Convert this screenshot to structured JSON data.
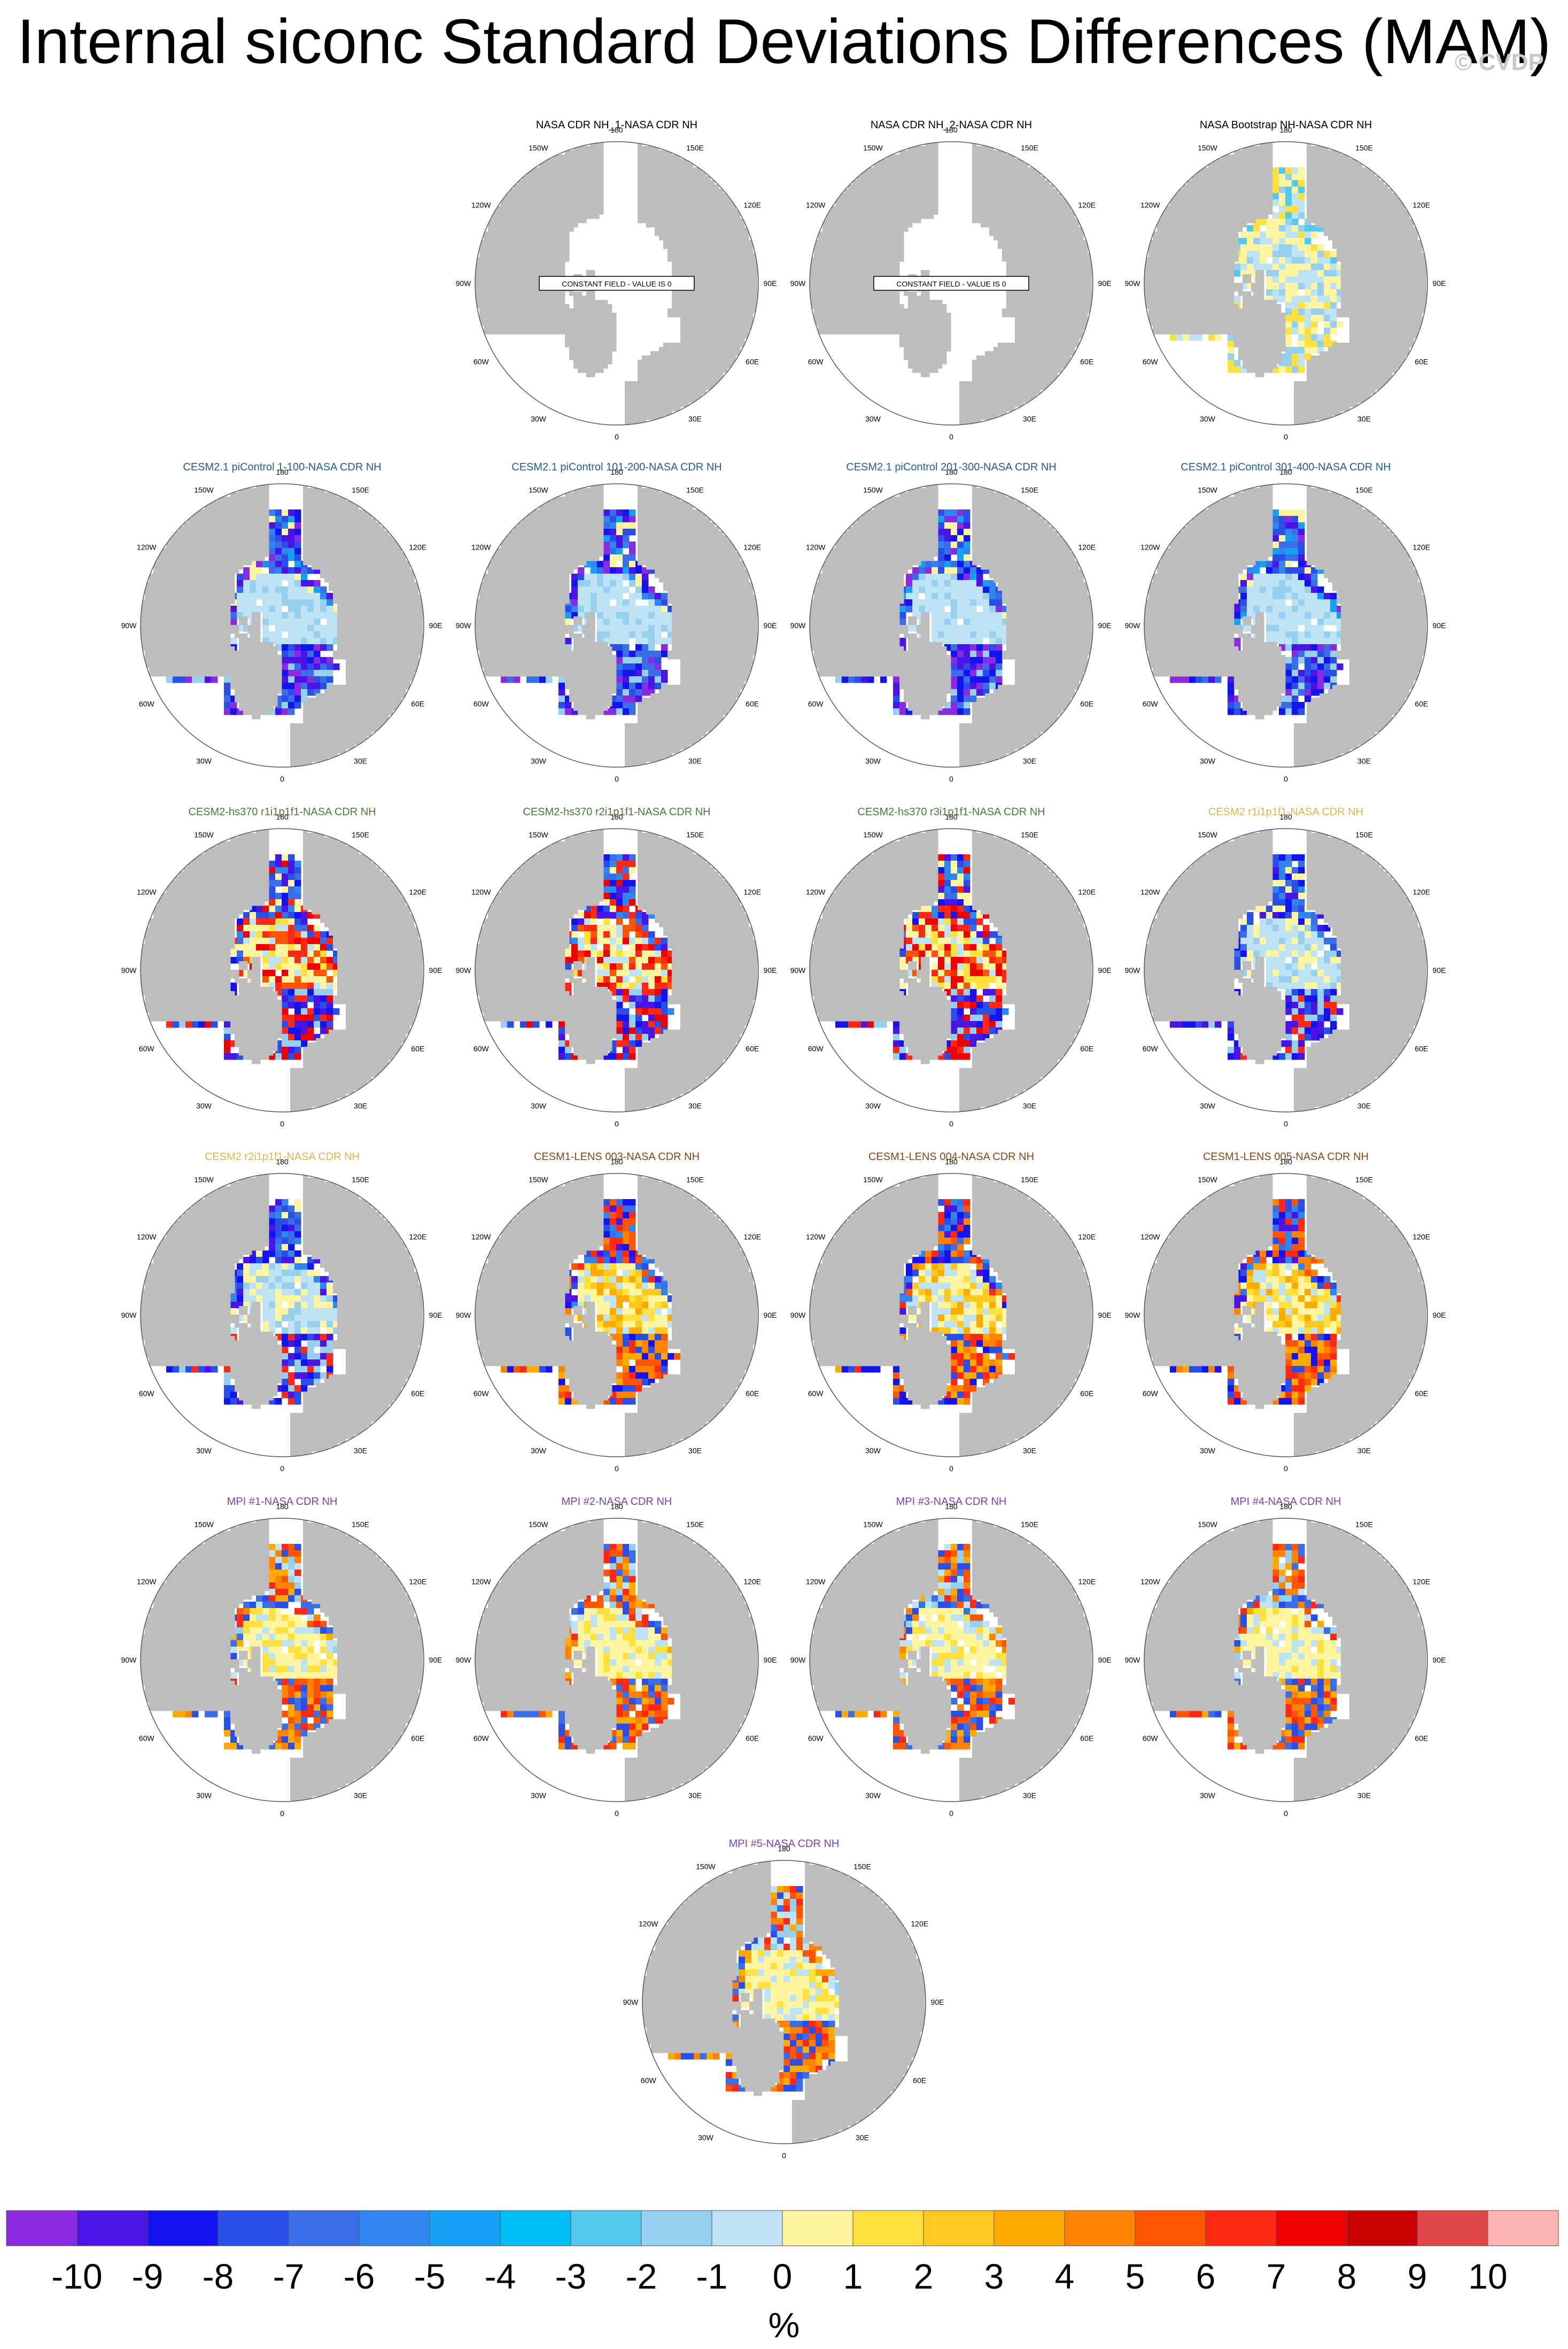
{
  "title": "Internal siconc Standard Deviations Differences (MAM)",
  "watermark": "© CVDP",
  "colors": {
    "land": "#bdbdbd",
    "ocean": "#ffffff",
    "title_obs": "#000000",
    "title_cesm21_picontrol": "#1f5f8b",
    "title_cesm2_hs370": "#4a7a3a",
    "title_cesm2": "#d9b84a",
    "title_cesm1_lens": "#8b4513",
    "title_mpi": "#7b3fc4"
  },
  "longitude_labels": [
    "180",
    "150E",
    "120E",
    "90E",
    "60E",
    "30E",
    "0",
    "30W",
    "60W",
    "90W",
    "120W",
    "150W"
  ],
  "constant_field_text": "CONSTANT FIELD - VALUE IS 0",
  "chart_data": {
    "type": "heatmap",
    "projection": "north polar stereographic",
    "variable": "siconc",
    "season": "MAM",
    "units": "%",
    "panels": [
      {
        "title": "NASA CDR NH_1-NASA CDR NH",
        "group": "obs",
        "pattern": "constant",
        "constant_value": 0
      },
      {
        "title": "NASA CDR NH_2-NASA CDR NH",
        "group": "obs",
        "pattern": "constant",
        "constant_value": 0
      },
      {
        "title": "NASA Bootstrap NH-NASA CDR NH",
        "group": "obs",
        "pattern": "bootstrap"
      },
      {
        "title": "CESM2.1 piControl 1-100-NASA CDR NH",
        "group": "cesm21_picontrol",
        "pattern": "picontrol"
      },
      {
        "title": "CESM2.1 piControl 101-200-NASA CDR NH",
        "group": "cesm21_picontrol",
        "pattern": "picontrol"
      },
      {
        "title": "CESM2.1 piControl 201-300-NASA CDR NH",
        "group": "cesm21_picontrol",
        "pattern": "picontrol"
      },
      {
        "title": "CESM2.1 piControl 301-400-NASA CDR NH",
        "group": "cesm21_picontrol",
        "pattern": "picontrol"
      },
      {
        "title": "CESM2-hs370 r1i1p1f1-NASA CDR NH",
        "group": "cesm2_hs370",
        "pattern": "hs370"
      },
      {
        "title": "CESM2-hs370 r2i1p1f1-NASA CDR NH",
        "group": "cesm2_hs370",
        "pattern": "hs370"
      },
      {
        "title": "CESM2-hs370 r3i1p1f1-NASA CDR NH",
        "group": "cesm2_hs370",
        "pattern": "hs370"
      },
      {
        "title": "CESM2 r1i1p1f1-NASA CDR NH",
        "group": "cesm2",
        "pattern": "cesm2"
      },
      {
        "title": "CESM2 r2i1p1f1-NASA CDR NH",
        "group": "cesm2",
        "pattern": "cesm2"
      },
      {
        "title": "CESM1-LENS 003-NASA CDR NH",
        "group": "cesm1_lens",
        "pattern": "lens"
      },
      {
        "title": "CESM1-LENS 004-NASA CDR NH",
        "group": "cesm1_lens",
        "pattern": "lens"
      },
      {
        "title": "CESM1-LENS 005-NASA CDR NH",
        "group": "cesm1_lens",
        "pattern": "lens"
      },
      {
        "title": "MPI #1-NASA CDR NH",
        "group": "mpi",
        "pattern": "mpi"
      },
      {
        "title": "MPI #2-NASA CDR NH",
        "group": "mpi",
        "pattern": "mpi"
      },
      {
        "title": "MPI #3-NASA CDR NH",
        "group": "mpi",
        "pattern": "mpi"
      },
      {
        "title": "MPI #4-NASA CDR NH",
        "group": "mpi",
        "pattern": "mpi"
      },
      {
        "title": "MPI #5-NASA CDR NH",
        "group": "mpi",
        "pattern": "mpi"
      }
    ],
    "colorbar": {
      "label": "%",
      "tick_labels": [
        "-10",
        "-9",
        "-8",
        "-7",
        "-6",
        "-5",
        "-4",
        "-3",
        "-2",
        "-1",
        "0",
        "1",
        "2",
        "3",
        "4",
        "5",
        "6",
        "7",
        "8",
        "9",
        "10"
      ],
      "colors": [
        "#8a2be2",
        "#4b14e6",
        "#1414f0",
        "#2a4fe8",
        "#3a6ee8",
        "#2f86f0",
        "#14a0f5",
        "#00bef5",
        "#55c8f0",
        "#96d0ee",
        "#bde3f5",
        "#fff5a0",
        "#ffe03c",
        "#ffc81e",
        "#ffaa00",
        "#ff8200",
        "#ff5500",
        "#ff2814",
        "#f00000",
        "#c80000",
        "#e04646",
        "#ffb4b4"
      ]
    }
  }
}
